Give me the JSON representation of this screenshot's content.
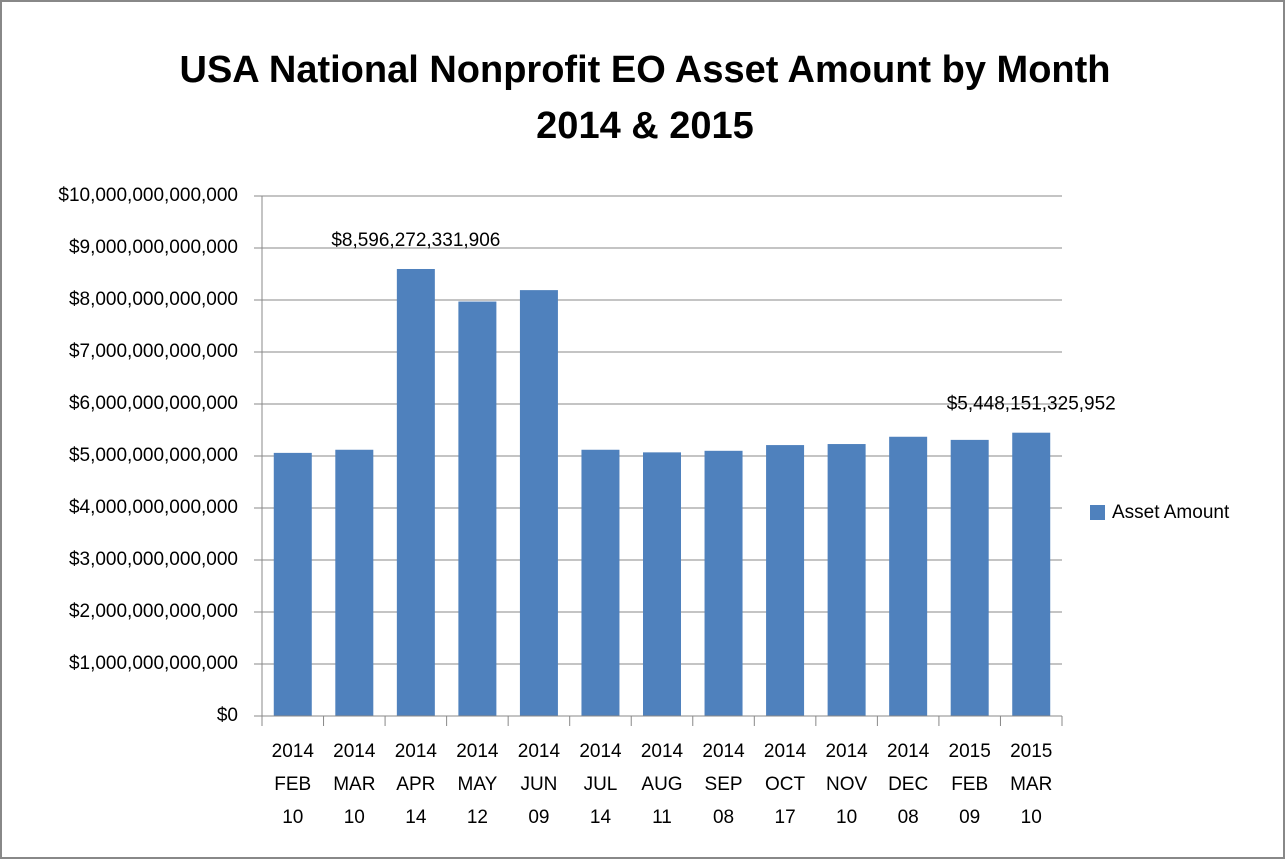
{
  "chart_data": {
    "type": "bar",
    "title": [
      "USA National Nonprofit EO Asset Amount by Month",
      "2014 & 2015"
    ],
    "categories": [
      [
        "2014",
        "FEB",
        "10"
      ],
      [
        "2014",
        "MAR",
        "10"
      ],
      [
        "2014",
        "APR",
        "14"
      ],
      [
        "2014",
        "MAY",
        "12"
      ],
      [
        "2014",
        "JUN",
        "09"
      ],
      [
        "2014",
        "JUL",
        "14"
      ],
      [
        "2014",
        "AUG",
        "11"
      ],
      [
        "2014",
        "SEP",
        "08"
      ],
      [
        "2014",
        "OCT",
        "17"
      ],
      [
        "2014",
        "NOV",
        "10"
      ],
      [
        "2014",
        "DEC",
        "08"
      ],
      [
        "2015",
        "FEB",
        "09"
      ],
      [
        "2015",
        "MAR",
        "10"
      ]
    ],
    "series": [
      {
        "name": "Asset Amount",
        "color": "#4f81bd",
        "values": [
          5060000000000,
          5120000000000,
          8596272331906,
          7970000000000,
          8190000000000,
          5120000000000,
          5070000000000,
          5100000000000,
          5210000000000,
          5230000000000,
          5370000000000,
          5310000000000,
          5448151325952
        ],
        "value_labels": [
          null,
          null,
          "$8,596,272,331,906",
          null,
          null,
          null,
          null,
          null,
          null,
          null,
          null,
          null,
          "$5,448,151,325,952"
        ]
      }
    ],
    "ylim": [
      0,
      10000000000000
    ],
    "yticks": [
      {
        "value": 0,
        "label": "$0"
      },
      {
        "value": 1000000000000,
        "label": "$1,000,000,000,000"
      },
      {
        "value": 2000000000000,
        "label": "$2,000,000,000,000"
      },
      {
        "value": 3000000000000,
        "label": "$3,000,000,000,000"
      },
      {
        "value": 4000000000000,
        "label": "$4,000,000,000,000"
      },
      {
        "value": 5000000000000,
        "label": "$5,000,000,000,000"
      },
      {
        "value": 6000000000000,
        "label": "$6,000,000,000,000"
      },
      {
        "value": 7000000000000,
        "label": "$7,000,000,000,000"
      },
      {
        "value": 8000000000000,
        "label": "$8,000,000,000,000"
      },
      {
        "value": 9000000000000,
        "label": "$9,000,000,000,000"
      },
      {
        "value": 10000000000000,
        "label": "$10,000,000,000,000"
      }
    ],
    "grid": true,
    "legend": "right"
  }
}
